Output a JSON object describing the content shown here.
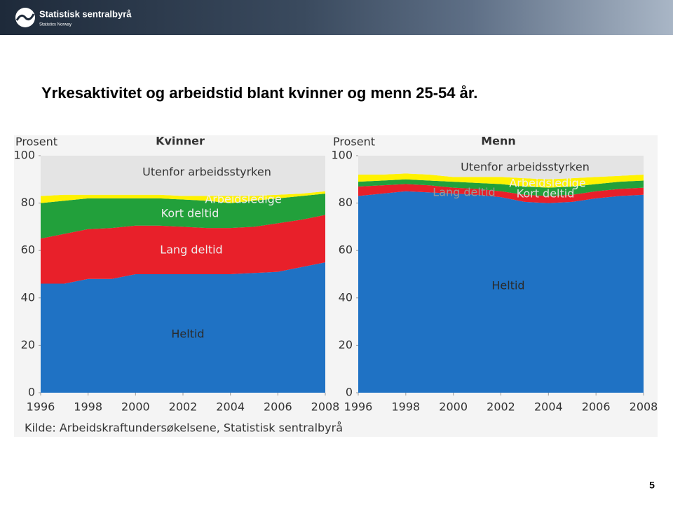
{
  "header": {
    "logo_name": "Statistisk sentralbyrå",
    "logo_sub": "Statistics Norway"
  },
  "slide_title": "Yrkesaktivitet og arbeidstid blant kvinner og menn 25-54 år.",
  "chart_data": [
    {
      "type": "stacked-area",
      "title": "Kvinner",
      "y_label": "Prosent",
      "x": [
        1996,
        1997,
        1998,
        1999,
        2000,
        2001,
        2002,
        2003,
        2004,
        2005,
        2006,
        2007,
        2008
      ],
      "xlim": [
        1996,
        2008
      ],
      "xticks": [
        1996,
        1998,
        2000,
        2002,
        2004,
        2006,
        2008
      ],
      "ylim": [
        0,
        100
      ],
      "yticks": [
        0,
        20,
        40,
        60,
        80,
        100
      ],
      "series": [
        {
          "name": "Heltid",
          "color": "#1f72c4",
          "values": [
            46,
            46,
            48,
            48,
            50,
            50,
            50,
            50,
            50,
            50.5,
            51,
            53,
            55
          ]
        },
        {
          "name": "Lang deltid",
          "color": "#e8202a",
          "values": [
            19,
            21,
            21,
            21.5,
            20.5,
            20.5,
            20,
            19.5,
            19.5,
            19.5,
            20.5,
            20,
            20
          ]
        },
        {
          "name": "Kort deltid",
          "color": "#22a03b",
          "values": [
            15,
            14,
            13,
            12.5,
            11.5,
            11.5,
            11.5,
            11.5,
            10.5,
            11,
            10.5,
            10,
            9
          ]
        },
        {
          "name": "Arbeidsledige",
          "color": "#fff200",
          "values": [
            3,
            2.5,
            1.5,
            1.5,
            1.5,
            1.5,
            1.5,
            2,
            3,
            2,
            1.5,
            1,
            1
          ]
        },
        {
          "name": "Utenfor arbeidsstyrken",
          "color": "#e4e4e4",
          "values": [
            17,
            16.5,
            16.5,
            16.5,
            16.5,
            16.5,
            17,
            17,
            17,
            17,
            16.5,
            16,
            15
          ]
        }
      ]
    },
    {
      "type": "stacked-area",
      "title": "Menn",
      "y_label": "Prosent",
      "x": [
        1996,
        1997,
        1998,
        1999,
        2000,
        2001,
        2002,
        2003,
        2004,
        2005,
        2006,
        2007,
        2008
      ],
      "xlim": [
        1996,
        2008
      ],
      "xticks": [
        1996,
        1998,
        2000,
        2002,
        2004,
        2006,
        2008
      ],
      "ylim": [
        0,
        100
      ],
      "yticks": [
        0,
        20,
        40,
        60,
        80,
        100
      ],
      "series": [
        {
          "name": "Heltid",
          "color": "#1f72c4",
          "values": [
            83,
            84,
            85,
            84.5,
            84,
            83.5,
            82.5,
            80.5,
            80,
            80.5,
            82,
            83,
            83.5
          ]
        },
        {
          "name": "Lang deltid",
          "color": "#e8202a",
          "values": [
            4,
            3.5,
            3,
            3,
            2.5,
            2.5,
            2.5,
            3,
            3,
            3,
            3,
            3,
            3
          ]
        },
        {
          "name": "Kort deltid",
          "color": "#22a03b",
          "values": [
            2,
            2,
            2,
            2,
            2.5,
            2.5,
            3,
            3.5,
            3.5,
            3.5,
            3,
            3,
            3
          ]
        },
        {
          "name": "Arbeidsledige",
          "color": "#fff200",
          "values": [
            3,
            2.5,
            2.5,
            2.5,
            2,
            2.5,
            3,
            3.5,
            3.5,
            3.5,
            3,
            2.5,
            2.5
          ]
        },
        {
          "name": "Utenfor arbeidsstyrken",
          "color": "#e4e4e4",
          "values": [
            8,
            8,
            7.5,
            8,
            9,
            9,
            9,
            9.5,
            10,
            9.5,
            9,
            8.5,
            8
          ]
        }
      ]
    }
  ],
  "source": "Kilde: Arbeidskraftundersøkelsene, Statistisk sentralbyrå",
  "page_number": "5"
}
